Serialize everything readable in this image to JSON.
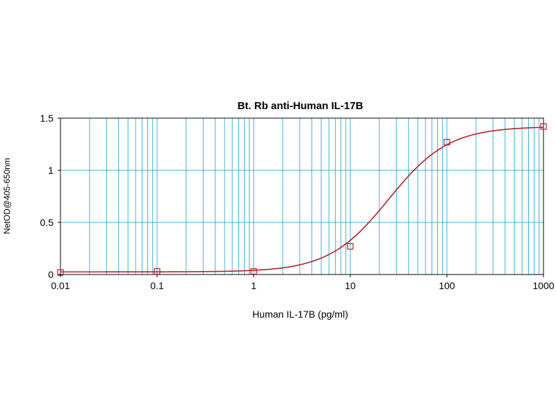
{
  "chart_data": {
    "type": "line",
    "title": "Bt. Rb anti-Human IL-17B",
    "xlabel": "Human IL-17B (pg/ml)",
    "ylabel": "NetOD@405-650nm",
    "x_scale": "log",
    "xlim": [
      0.01,
      1000
    ],
    "ylim": [
      0,
      1.5
    ],
    "x_ticks": [
      "0.01",
      "0.1",
      "1",
      "10",
      "100",
      "1000"
    ],
    "y_ticks": [
      "0",
      "0.5",
      "1",
      "1.5"
    ],
    "grid": true,
    "series": [
      {
        "points": [
          {
            "x": 0.01,
            "y": 0.02
          },
          {
            "x": 0.1,
            "y": 0.03
          },
          {
            "x": 1,
            "y": 0.03
          },
          {
            "x": 10,
            "y": 0.27
          },
          {
            "x": 100,
            "y": 1.27
          },
          {
            "x": 1000,
            "y": 1.42
          }
        ],
        "fit": {
          "model": "4PL",
          "bottom": 0.025,
          "top": 1.42,
          "ec50": 25,
          "hill": 1.4
        }
      }
    ],
    "colors": {
      "curve": "#b22222",
      "grid": "#3fb2d9"
    }
  }
}
